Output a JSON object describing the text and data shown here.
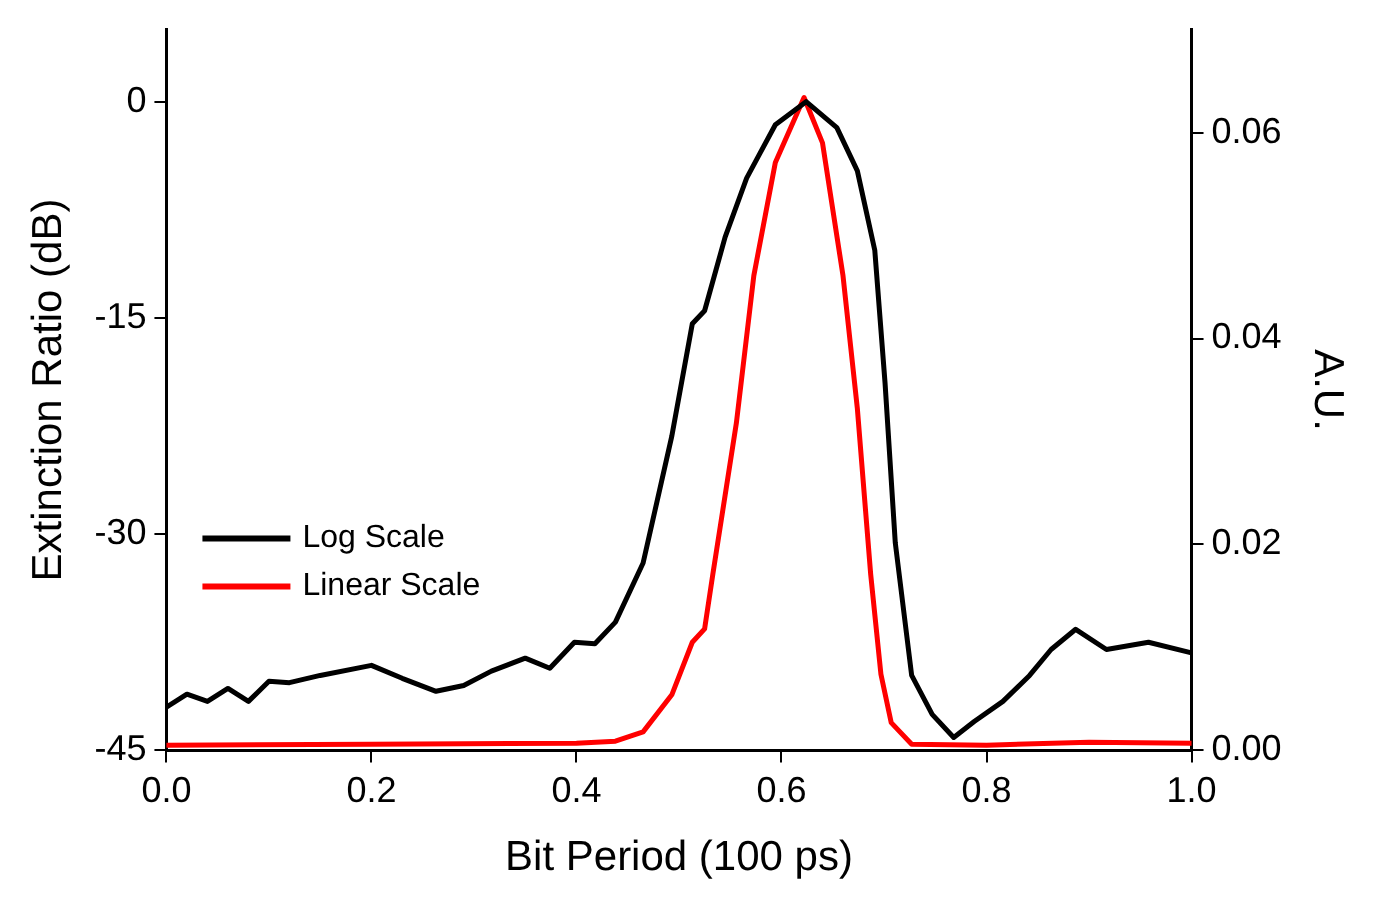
{
  "chart_data": {
    "type": "line",
    "xlabel": "Bit Period (100 ps)",
    "ylabel": "Extinction Ratio (dB)",
    "y2label": "A.U.",
    "xlim": [
      0,
      1
    ],
    "xticks": [
      {
        "value": 0,
        "label": "0.0"
      },
      0.2,
      0.4,
      0.6,
      0.8,
      {
        "value": 1,
        "label": "1.0"
      }
    ],
    "ylim": [
      -45,
      5
    ],
    "yticks": [
      -45,
      -30,
      -15,
      0
    ],
    "y2lim": [
      0,
      0.07
    ],
    "y2ticks": [
      {
        "value": 0,
        "label": "0.00"
      },
      {
        "value": 0.02,
        "label": "0.02"
      },
      {
        "value": 0.04,
        "label": "0.04"
      },
      {
        "value": 0.06,
        "label": "0.06"
      }
    ],
    "grid": false,
    "legend": "bottom left",
    "marker": "none",
    "line_style": "solid",
    "series": [
      {
        "name": "Log Scale",
        "color": "#000000",
        "x": [
          0,
          0.02,
          0.04,
          0.06,
          0.08,
          0.1,
          0.12,
          0.15,
          0.2,
          0.23,
          0.263,
          0.29,
          0.317,
          0.35,
          0.374,
          0.398,
          0.418,
          0.438,
          0.465,
          0.493,
          0.513,
          0.525,
          0.545,
          0.566,
          0.594,
          0.624,
          0.654,
          0.674,
          0.691,
          0.701,
          0.711,
          0.727,
          0.747,
          0.768,
          0.788,
          0.816,
          0.842,
          0.863,
          0.887,
          0.917,
          0.958,
          0.998
        ],
        "values": [
          -42,
          -41.1,
          -41.6,
          -40.7,
          -41.6,
          -40.2,
          -40.3,
          -39.8,
          -39.1,
          -40,
          -40.9,
          -40.5,
          -39.5,
          -38.6,
          -39.3,
          -37.5,
          -37.6,
          -36.1,
          -32,
          -23.2,
          -15.4,
          -14.5,
          -9.4,
          -5.3,
          -1.6,
          0,
          -1.8,
          -4.8,
          -10.3,
          -19.5,
          -30.6,
          -39.8,
          -42.5,
          -44.1,
          -43,
          -41.6,
          -39.8,
          -38,
          -36.6,
          -38,
          -37.5,
          -38.2
        ]
      },
      {
        "name": "Linear Scale",
        "color": "#ff0000",
        "axis": "y2",
        "x": [
          0,
          0.2,
          0.4,
          0.438,
          0.465,
          0.493,
          0.513,
          0.525,
          0.533,
          0.556,
          0.573,
          0.594,
          0.622,
          0.64,
          0.66,
          0.674,
          0.687,
          0.697,
          0.707,
          0.727,
          0.8,
          0.9,
          1
        ],
        "values": [
          0.0005,
          0.0006,
          0.0007,
          0.0009,
          0.0018,
          0.0054,
          0.0105,
          0.0118,
          0.0171,
          0.0318,
          0.0461,
          0.0571,
          0.0634,
          0.059,
          0.0461,
          0.0332,
          0.0171,
          0.0074,
          0.0027,
          0.0006,
          0.0005,
          0.0008,
          0.0007
        ]
      }
    ]
  }
}
